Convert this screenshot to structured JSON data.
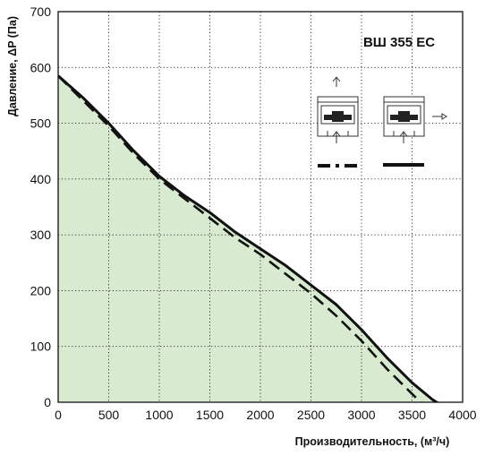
{
  "chart_data": {
    "type": "line",
    "title": "ВШ 355 EC",
    "xlabel": "Производительность, (м³/ч)",
    "ylabel": "Давление, ΔP (Па)",
    "xlim": [
      0,
      4000
    ],
    "ylim": [
      0,
      700
    ],
    "x_ticks": [
      "0",
      "500",
      "1000",
      "1500",
      "2000",
      "2500",
      "3000",
      "3500",
      "4000"
    ],
    "y_ticks": [
      "0",
      "100",
      "200",
      "300",
      "400",
      "500",
      "600",
      "700"
    ],
    "grid": true,
    "series": [
      {
        "style": "solid",
        "fill": "#d8ebd0",
        "x": [
          0,
          250,
          500,
          750,
          1000,
          1250,
          1500,
          1750,
          2000,
          2250,
          2500,
          2750,
          3000,
          3250,
          3500,
          3700,
          3830
        ],
        "y": [
          585,
          545,
          500,
          450,
          405,
          370,
          340,
          305,
          275,
          245,
          210,
          175,
          130,
          80,
          35,
          5,
          -10
        ]
      },
      {
        "style": "dashed",
        "x": [
          0,
          250,
          500,
          750,
          1000,
          1250,
          1500,
          1750,
          2000,
          2250,
          2500,
          2750,
          3000,
          3250,
          3500,
          3640
        ],
        "y": [
          585,
          540,
          495,
          445,
          400,
          365,
          330,
          295,
          265,
          230,
          195,
          155,
          110,
          60,
          15,
          -10
        ]
      }
    ],
    "legend": {
      "placement": "top-right",
      "icons": [
        "exhaust-up-icon",
        "exhaust-side-icon"
      ],
      "items": [
        {
          "style": "dashed",
          "icon": "exhaust-up-icon"
        },
        {
          "style": "solid",
          "icon": "exhaust-side-icon"
        }
      ]
    }
  }
}
